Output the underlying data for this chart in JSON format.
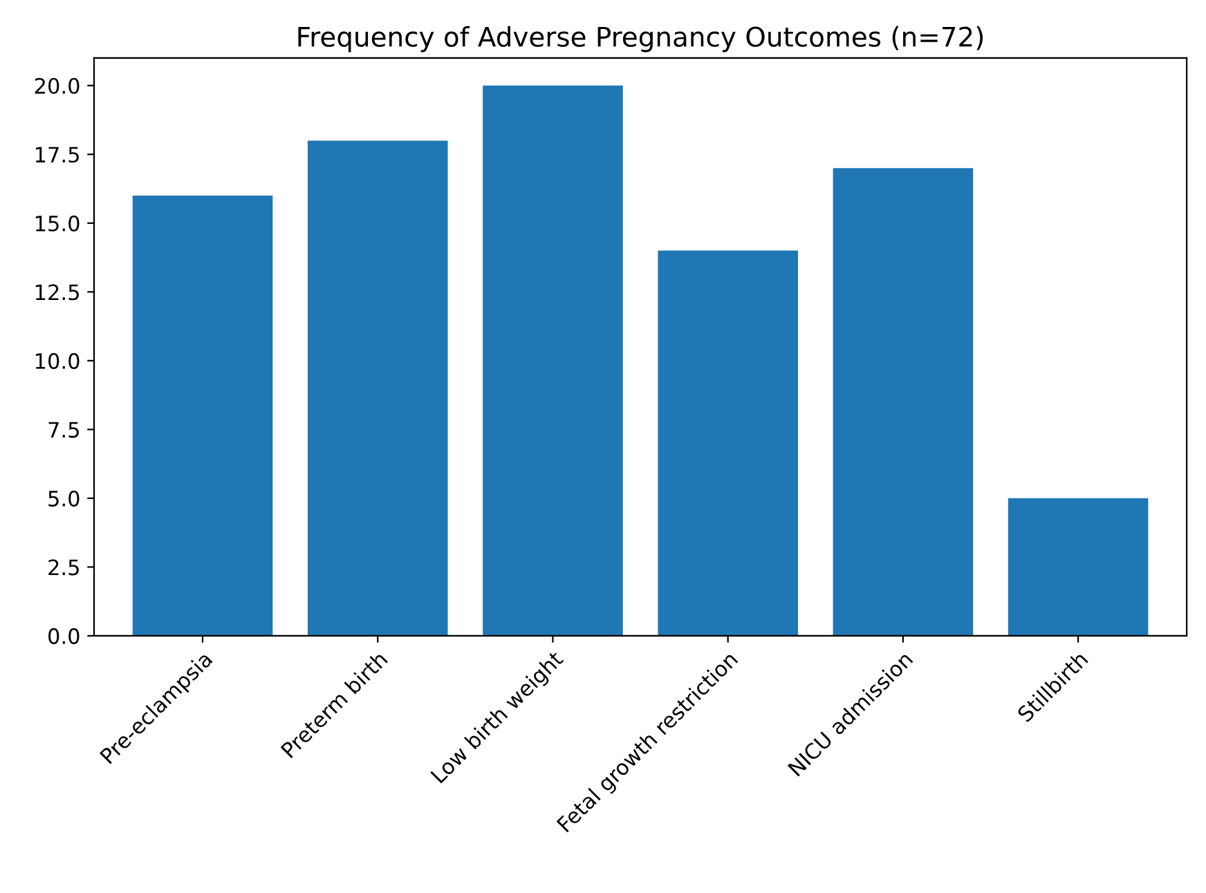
{
  "chart_data": {
    "type": "bar",
    "title": "Frequency of Adverse Pregnancy Outcomes (n=72)",
    "categories": [
      "Pre-eclampsia",
      "Preterm birth",
      "Low birth weight",
      "Fetal growth restriction",
      "NICU admission",
      "Stillbirth"
    ],
    "values": [
      16,
      18,
      20,
      14,
      17,
      5
    ],
    "color": "#1f77b4",
    "ylim": [
      0,
      21
    ],
    "yticks": [
      {
        "value": 0,
        "label": "0.0"
      },
      {
        "value": 2.5,
        "label": "2.5"
      },
      {
        "value": 5,
        "label": "5.0"
      },
      {
        "value": 7.5,
        "label": "7.5"
      },
      {
        "value": 10,
        "label": "10.0"
      },
      {
        "value": 12.5,
        "label": "12.5"
      },
      {
        "value": 15,
        "label": "15.0"
      },
      {
        "value": 17.5,
        "label": "17.5"
      },
      {
        "value": 20,
        "label": "20.0"
      }
    ],
    "grid": false
  }
}
